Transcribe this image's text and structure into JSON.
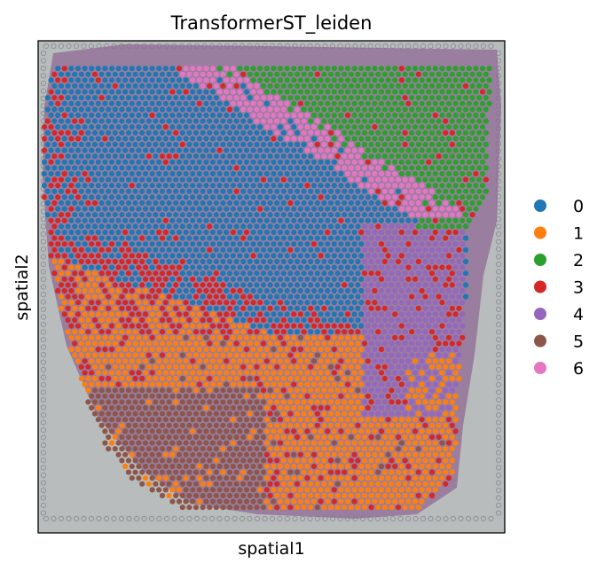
{
  "chart_data": {
    "type": "scatter",
    "title": "TransformerST_leiden",
    "xlabel": "spatial1",
    "ylabel": "spatial2",
    "grid": false,
    "legend_position": "right",
    "has_tissue_image": true,
    "series": [
      {
        "name": "0",
        "color": "#1f77b4"
      },
      {
        "name": "1",
        "color": "#ff7f0e"
      },
      {
        "name": "2",
        "color": "#2ca02c"
      },
      {
        "name": "3",
        "color": "#d62728"
      },
      {
        "name": "4",
        "color": "#9467bd"
      },
      {
        "name": "5",
        "color": "#8c564b"
      },
      {
        "name": "6",
        "color": "#e377c2"
      }
    ]
  }
}
